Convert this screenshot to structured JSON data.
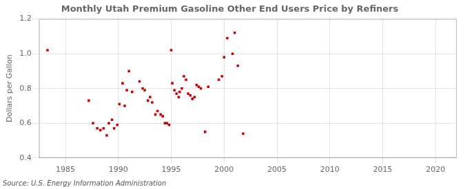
{
  "chart_data": {
    "type": "scatter",
    "title": "Monthly Utah Premium Gasoline Other End Users Price by Refiners",
    "y_label": "Dollars per Gallon",
    "annotations": [
      "Source: U.S. Energy Information Administration"
    ],
    "xlim": [
      1982.5,
      2022
    ],
    "ylim": [
      0.4,
      1.2
    ],
    "xticks": [
      1985,
      1990,
      1995,
      2000,
      2005,
      2010,
      2015,
      2020
    ],
    "yticks": [
      0.4,
      0.6,
      0.8,
      {
        "value": 1.0,
        "label": "1.0"
      },
      1.2
    ],
    "grid": true,
    "color": "#cc0000",
    "marker": "square",
    "x": [
      1983.3,
      1987.2,
      1987.6,
      1988.0,
      1988.3,
      1988.6,
      1988.9,
      1989.1,
      1989.4,
      1989.6,
      1989.9,
      1990.1,
      1990.4,
      1990.6,
      1990.8,
      1991.0,
      1991.3,
      1992.0,
      1992.3,
      1992.5,
      1992.8,
      1993.0,
      1993.2,
      1993.5,
      1993.7,
      1994.0,
      1994.2,
      1994.4,
      1994.6,
      1994.8,
      1995.0,
      1995.1,
      1995.3,
      1995.5,
      1995.7,
      1995.8,
      1996.0,
      1996.2,
      1996.4,
      1996.6,
      1996.8,
      1997.0,
      1997.2,
      1997.4,
      1997.6,
      1997.8,
      1998.2,
      1998.5,
      1999.5,
      1999.8,
      2000.0,
      2000.3,
      2000.8,
      2001.0,
      2001.3,
      2001.8
    ],
    "values": [
      1.02,
      0.73,
      0.6,
      0.57,
      0.56,
      0.57,
      0.53,
      0.6,
      0.62,
      0.57,
      0.59,
      0.71,
      0.83,
      0.7,
      0.79,
      0.9,
      0.78,
      0.84,
      0.8,
      0.79,
      0.73,
      0.75,
      0.72,
      0.65,
      0.67,
      0.65,
      0.64,
      0.6,
      0.6,
      0.59,
      1.02,
      0.83,
      0.79,
      0.77,
      0.75,
      0.78,
      0.8,
      0.87,
      0.85,
      0.77,
      0.76,
      0.74,
      0.75,
      0.82,
      0.81,
      0.8,
      0.55,
      0.81,
      0.85,
      0.87,
      0.98,
      1.09,
      1.0,
      1.12,
      0.93,
      0.54
    ]
  }
}
